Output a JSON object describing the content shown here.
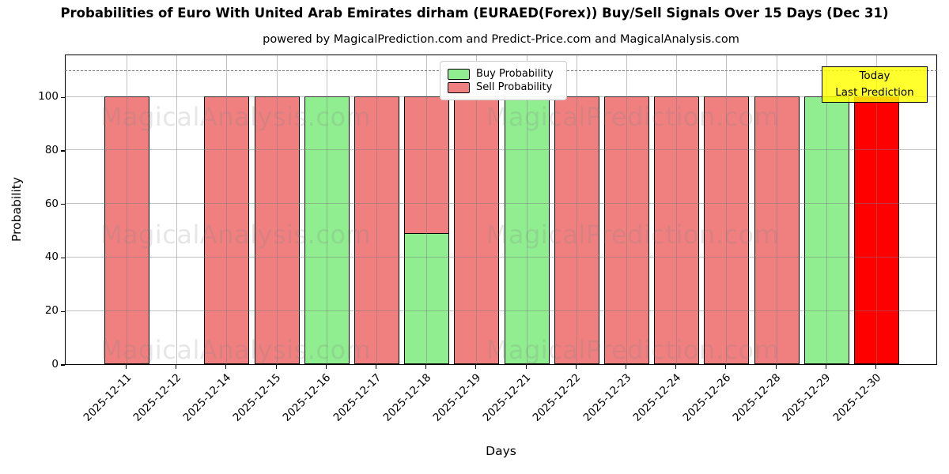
{
  "header": {
    "title": "Probabilities of Euro With United Arab Emirates dirham (EURAED(Forex)) Buy/Sell Signals Over 15 Days (Dec 31)",
    "subtitle": "powered by MagicalPrediction.com and Predict-Price.com and MagicalAnalysis.com"
  },
  "watermarks": {
    "left": "MagicalAnalysis.com",
    "right": "MagicalPrediction.com"
  },
  "annotation": {
    "line1": "Today",
    "line2": "Last Prediction",
    "bg_color": "#ffff00"
  },
  "legend": [
    {
      "label": "Buy Probability",
      "color": "#90ee90"
    },
    {
      "label": "Sell Probability",
      "color": "#f08080"
    }
  ],
  "chart_data": {
    "type": "bar",
    "stacked": true,
    "title": "Probabilities of Euro With United Arab Emirates dirham (EURAED(Forex)) Buy/Sell Signals Over 15 Days (Dec 31)",
    "xlabel": "Days",
    "ylabel": "Probability",
    "ylim": [
      0,
      116
    ],
    "yticks": [
      0,
      20,
      40,
      60,
      80,
      100
    ],
    "dashed_line_y": 110,
    "grid": true,
    "legend_position": "upper center",
    "categories": [
      "2025-12-11",
      "2025-12-12",
      "2025-12-14",
      "2025-12-15",
      "2025-12-16",
      "2025-12-17",
      "2025-12-18",
      "2025-12-19",
      "2025-12-21",
      "2025-12-22",
      "2025-12-23",
      "2025-12-24",
      "2025-12-26",
      "2025-12-28",
      "2025-12-29",
      "2025-12-30"
    ],
    "series": [
      {
        "name": "Buy Probability",
        "color": "#90ee90",
        "values": [
          0,
          0,
          0,
          0,
          100,
          0,
          49,
          0,
          100,
          0,
          0,
          0,
          0,
          0,
          100,
          0
        ]
      },
      {
        "name": "Sell Probability",
        "color": "#f08080",
        "values": [
          100,
          0,
          100,
          100,
          0,
          100,
          51,
          100,
          0,
          100,
          100,
          100,
          100,
          100,
          0,
          100
        ]
      }
    ],
    "last_prediction": {
      "category": "2025-12-30",
      "index": 15,
      "color": "#ff0000",
      "value": 100
    }
  }
}
